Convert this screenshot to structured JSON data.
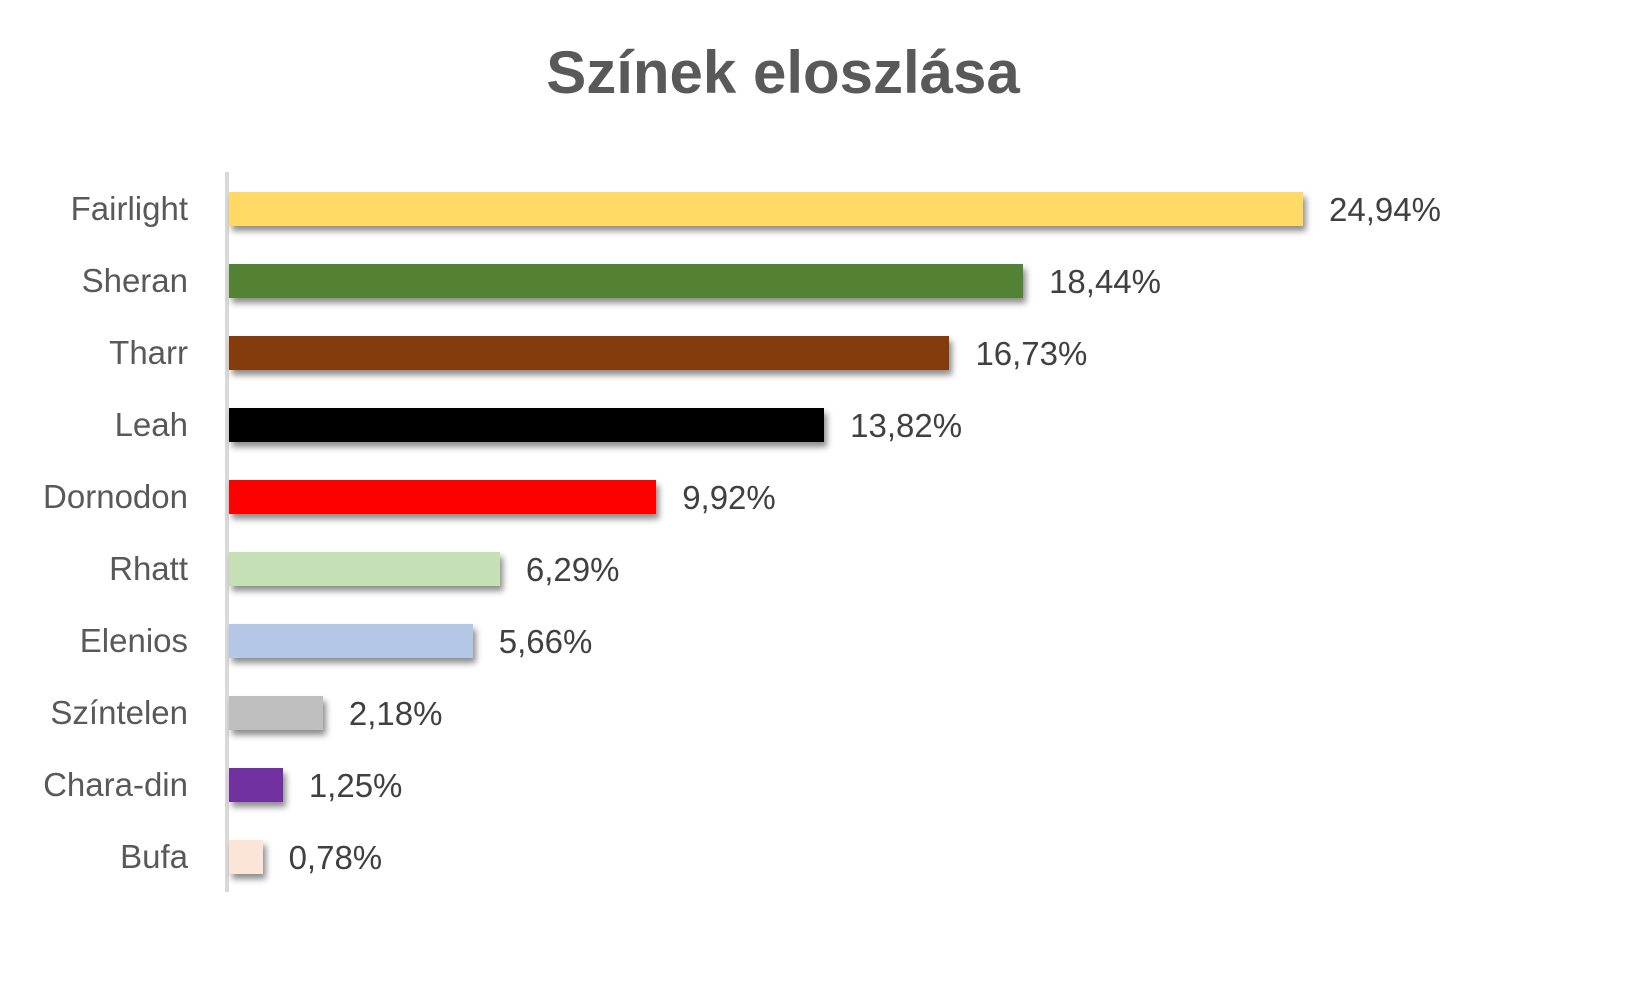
{
  "chart_data": {
    "type": "bar",
    "orientation": "horizontal",
    "title": "Színek eloszlása",
    "xlabel": "",
    "ylabel": "",
    "categories": [
      "Fairlight",
      "Sheran",
      "Tharr",
      "Leah",
      "Dornodon",
      "Rhatt",
      "Elenios",
      "Színtelen",
      "Chara-din",
      "Bufa"
    ],
    "values": [
      24.94,
      18.44,
      16.73,
      13.82,
      9.92,
      6.29,
      5.66,
      2.18,
      1.25,
      0.78
    ],
    "labels": [
      "24,94%",
      "18,44%",
      "16,73%",
      "13,82%",
      "9,92%",
      "6,29%",
      "5,66%",
      "2,18%",
      "1,25%",
      "0,78%"
    ],
    "colors": [
      "#FFD966",
      "#548235",
      "#843C0C",
      "#000000",
      "#FF0000",
      "#C5E0B4",
      "#B4C7E7",
      "#BFBFBF",
      "#7030A0",
      "#FBE5D6"
    ],
    "unit": "%",
    "grid": false,
    "legend": null,
    "xlim": [
      0,
      25
    ]
  }
}
